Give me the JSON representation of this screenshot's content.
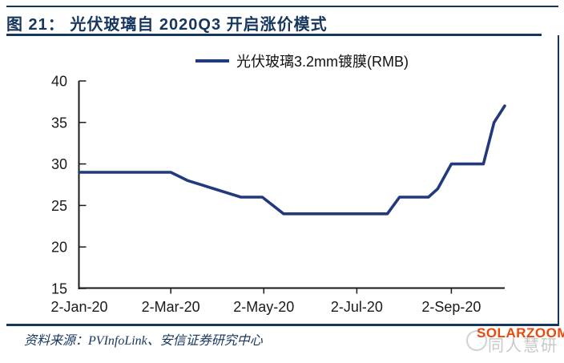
{
  "figure": {
    "title": "图 21： 光伏玻璃自 2020Q3 开启涨价模式",
    "source_prefix": "资料来源：",
    "source_text": "PVInfoLink、安信证券研究中心"
  },
  "legend": {
    "label": "光伏玻璃3.2mm镀膜(RMB)"
  },
  "watermark": {
    "brand": "SOLARZOOM",
    "ghost_text": "同人慧研",
    "brand_color": "#e8490c"
  },
  "colors": {
    "navy_accent": "#17365d",
    "line": "#21397d",
    "axis": "#1a1a1a",
    "label": "#1a1a1a"
  },
  "chart_data": {
    "type": "line",
    "title": "光伏玻璃自 2020Q3 开启涨价模式",
    "xlabel": "",
    "ylabel": "",
    "ylim": [
      15,
      40
    ],
    "y_ticks": [
      15,
      20,
      25,
      30,
      35,
      40
    ],
    "x_ticks": [
      {
        "label": "2-Jan-20",
        "date": "2020-01-02"
      },
      {
        "label": "2-Mar-20",
        "date": "2020-03-02"
      },
      {
        "label": "2-May-20",
        "date": "2020-05-02"
      },
      {
        "label": "2-Jul-20",
        "date": "2020-07-02"
      },
      {
        "label": "2-Sep-20",
        "date": "2020-09-02"
      }
    ],
    "xlim": [
      "2020-01-02",
      "2020-10-07"
    ],
    "grid": false,
    "legend_position": "top",
    "series": [
      {
        "name": "光伏玻璃3.2mm镀膜(RMB)",
        "color": "#21397d",
        "points": [
          [
            "2020-01-02",
            29
          ],
          [
            "2020-03-02",
            29
          ],
          [
            "2020-03-13",
            28
          ],
          [
            "2020-04-17",
            26
          ],
          [
            "2020-05-01",
            26
          ],
          [
            "2020-05-15",
            24
          ],
          [
            "2020-07-22",
            24
          ],
          [
            "2020-07-30",
            26
          ],
          [
            "2020-08-18",
            26
          ],
          [
            "2020-08-24",
            27
          ],
          [
            "2020-09-02",
            30
          ],
          [
            "2020-09-23",
            30
          ],
          [
            "2020-09-30",
            35
          ],
          [
            "2020-10-07",
            37
          ]
        ]
      }
    ]
  }
}
